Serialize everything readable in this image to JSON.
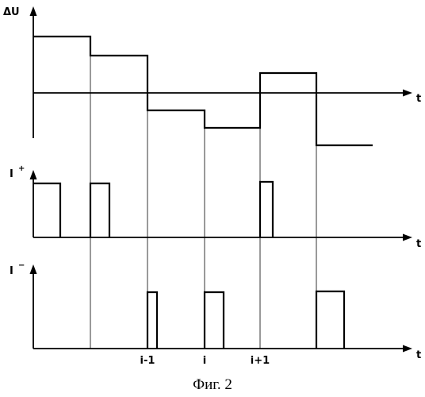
{
  "panels": {
    "top": {
      "y_label": "ΔU",
      "x_label": "t"
    },
    "middle": {
      "y_label_base": "I",
      "y_label_sup": "+",
      "x_label": "t"
    },
    "bottom": {
      "y_label_base": "I",
      "y_label_sup": "−",
      "x_label": "t"
    }
  },
  "x_ticks": [
    "i-1",
    "i",
    "i+1"
  ],
  "caption": "Фиг. 2"
}
